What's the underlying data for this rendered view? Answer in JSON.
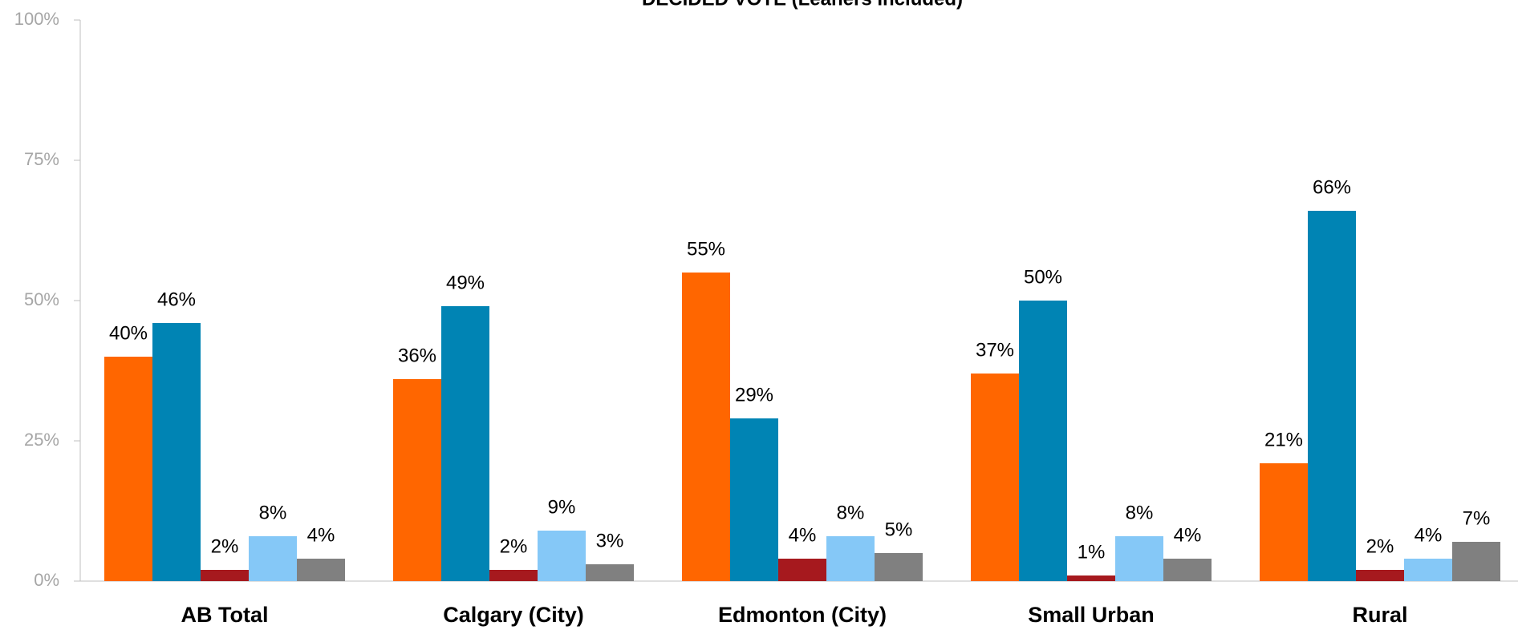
{
  "chart_data": {
    "type": "bar",
    "title": "DECIDED VOTE (Leaners Included)",
    "categories": [
      "AB Total",
      "Calgary (City)",
      "Edmonton (City)",
      "Small Urban",
      "Rural"
    ],
    "series": [
      {
        "color": "#ff6600",
        "values": [
          40,
          36,
          55,
          37,
          21
        ],
        "value_labels": [
          "40%",
          "36%",
          "55%",
          "37%",
          "21%"
        ]
      },
      {
        "color": "#0084b4",
        "values": [
          46,
          49,
          29,
          50,
          66
        ],
        "value_labels": [
          "46%",
          "49%",
          "29%",
          "50%",
          "66%"
        ]
      },
      {
        "color": "#a6191e",
        "values": [
          2,
          2,
          4,
          1,
          2
        ],
        "value_labels": [
          "2%",
          "2%",
          "4%",
          "1%",
          "2%"
        ]
      },
      {
        "color": "#85c8f7",
        "values": [
          8,
          9,
          8,
          8,
          4
        ],
        "value_labels": [
          "8%",
          "9%",
          "8%",
          "8%",
          "4%"
        ]
      },
      {
        "color": "#808080",
        "values": [
          4,
          3,
          5,
          4,
          7
        ],
        "value_labels": [
          "4%",
          "3%",
          "5%",
          "4%",
          "7%"
        ]
      }
    ],
    "ylim": [
      0,
      100
    ],
    "yticks": [
      {
        "value": 0,
        "label": "0%"
      },
      {
        "value": 25,
        "label": "25%"
      },
      {
        "value": 50,
        "label": "50%"
      },
      {
        "value": 75,
        "label": "75%"
      },
      {
        "value": 100,
        "label": "100%"
      }
    ],
    "grid": false
  }
}
